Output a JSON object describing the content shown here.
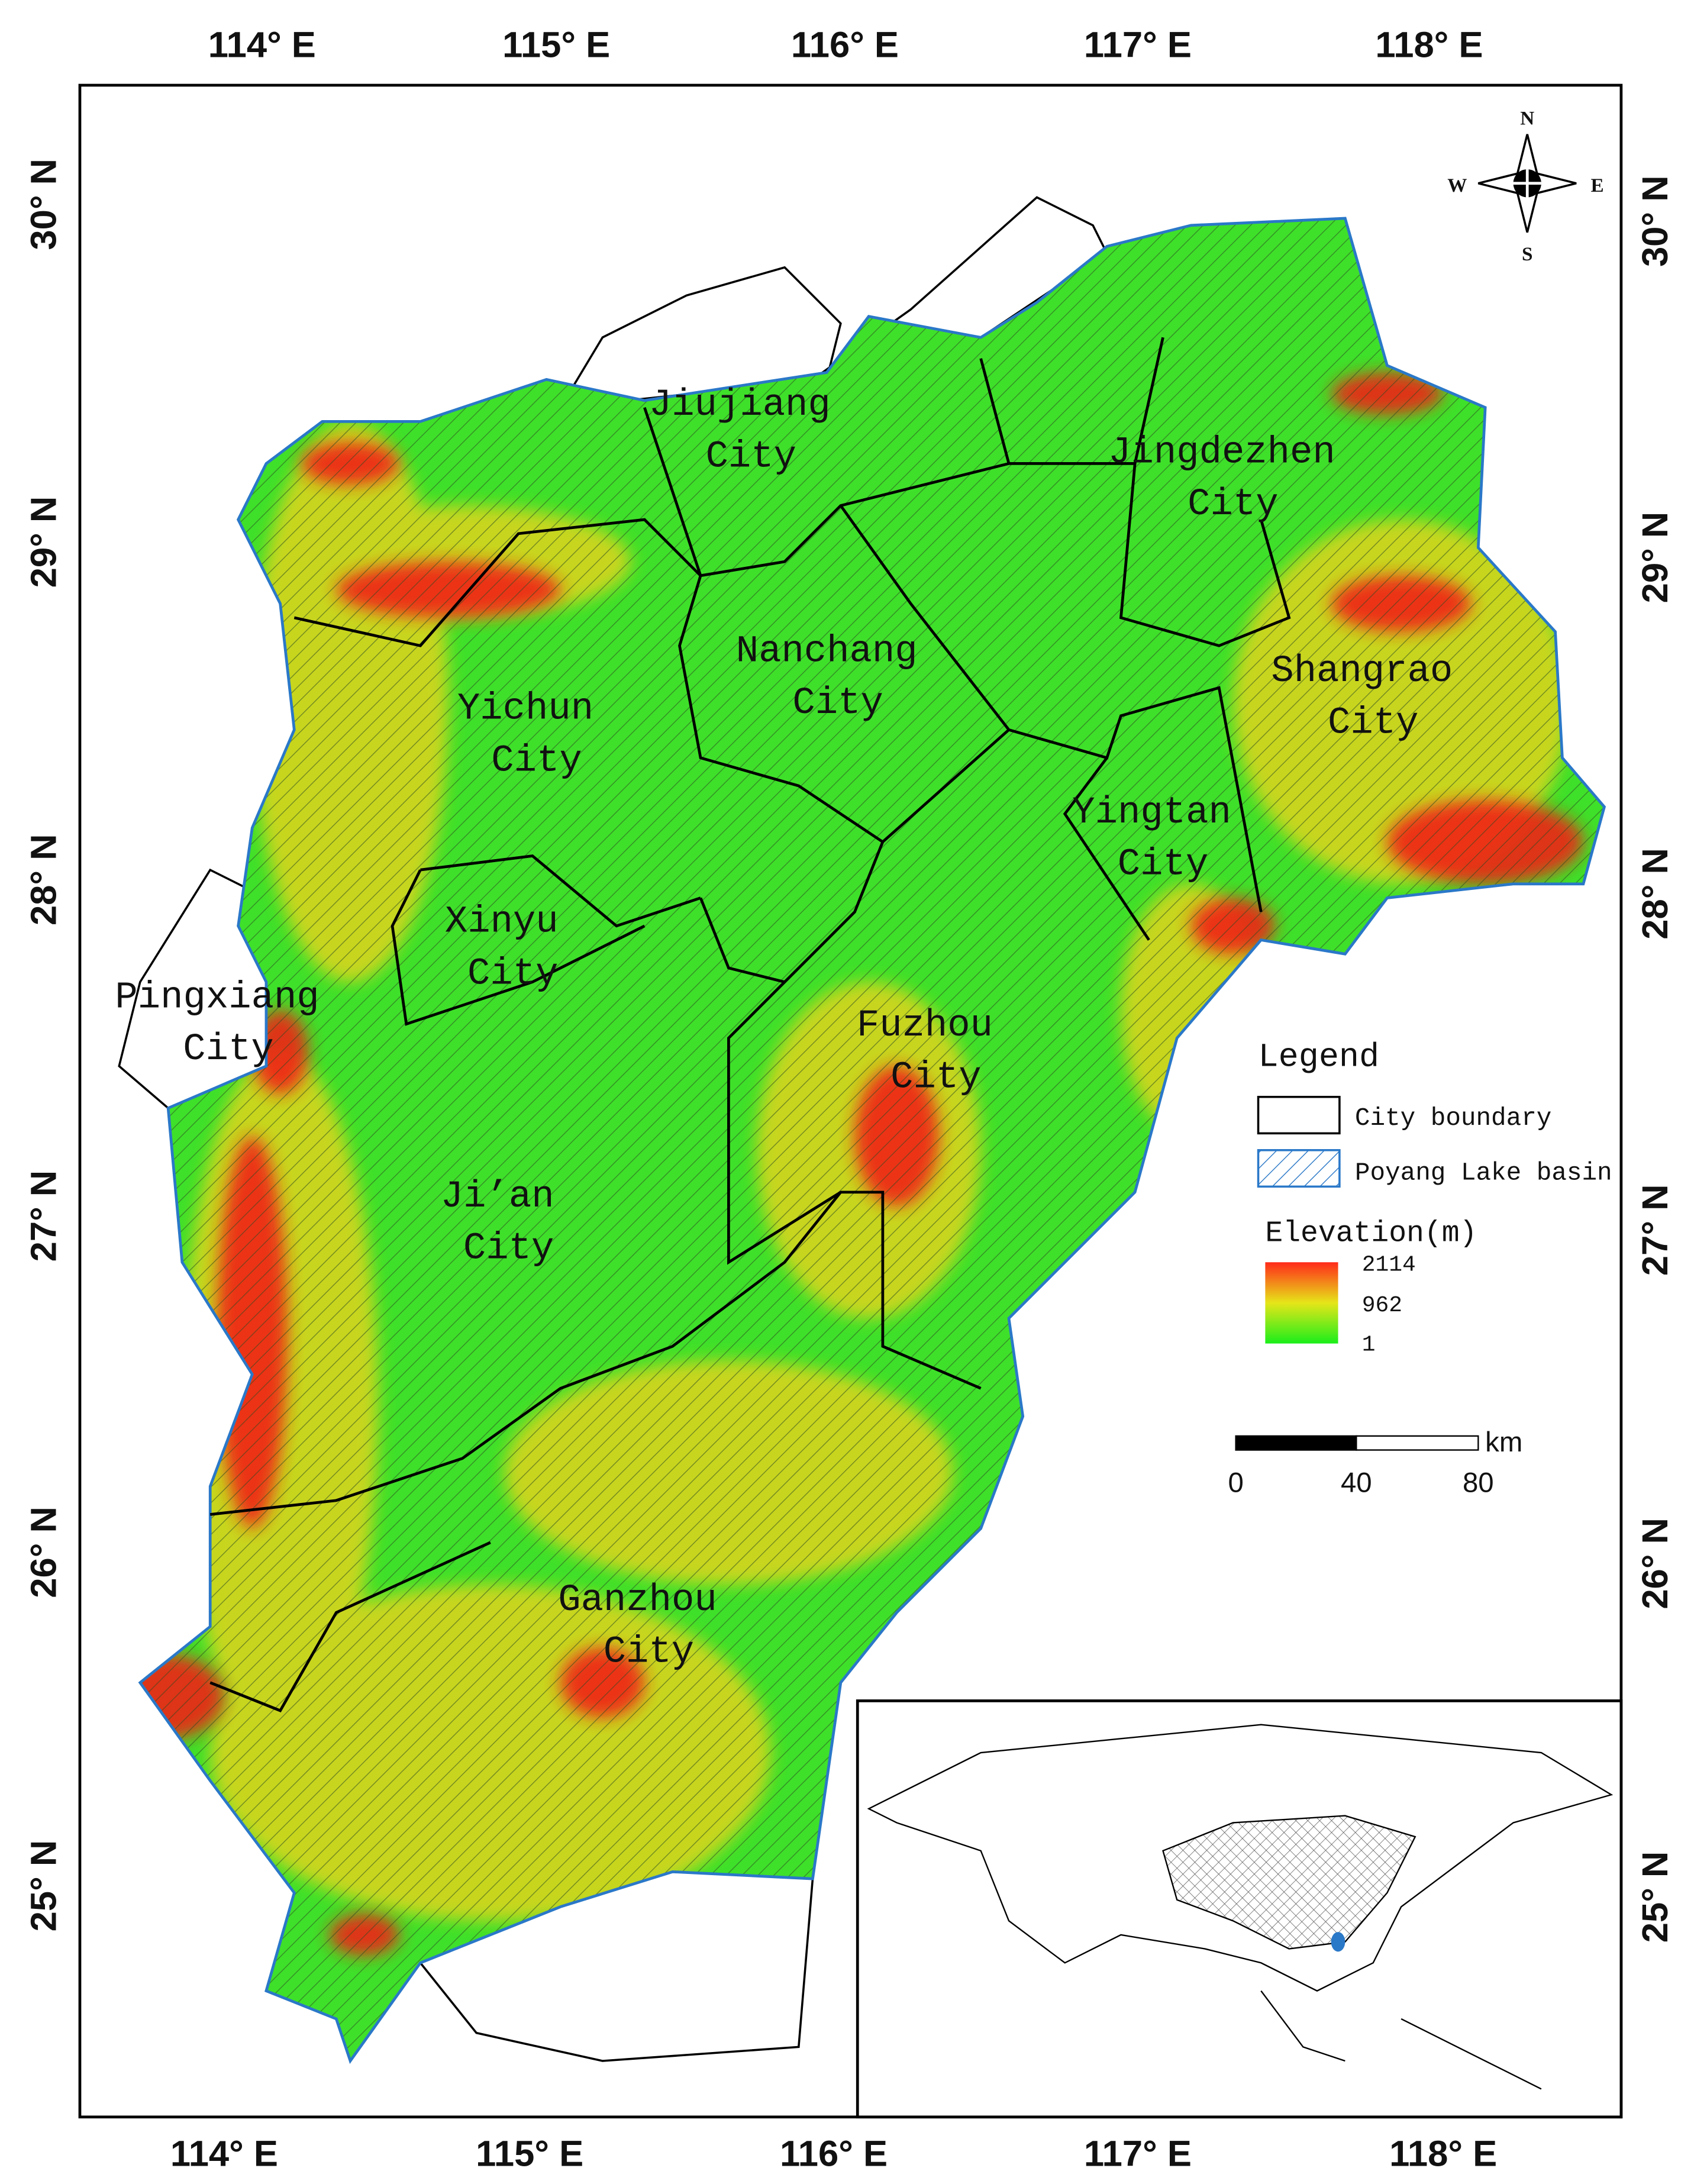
{
  "map": {
    "lon_ticks_top": [
      "114° E",
      "115° E",
      "116° E",
      "117° E",
      "118° E"
    ],
    "lon_ticks_bottom": [
      "114° E",
      "115° E",
      "116° E",
      "117° E",
      "118° E"
    ],
    "lat_ticks_left": [
      "30° N",
      "29° N",
      "28° N",
      "27° N",
      "26° N",
      "25° N"
    ],
    "lat_ticks_right": [
      "30° N",
      "29° N",
      "28° N",
      "27° N",
      "26° N",
      "25° N"
    ]
  },
  "cities": [
    {
      "name": "Jiujiang",
      "suffix": "City"
    },
    {
      "name": "Jingdezhen",
      "suffix": "City"
    },
    {
      "name": "Nanchang",
      "suffix": "City"
    },
    {
      "name": "Shangrao",
      "suffix": "City"
    },
    {
      "name": "Yichun",
      "suffix": "City"
    },
    {
      "name": "Yingtan",
      "suffix": "City"
    },
    {
      "name": "Xinyu",
      "suffix": "City"
    },
    {
      "name": "Pingxiang",
      "suffix": "City"
    },
    {
      "name": "Fuzhou",
      "suffix": "City"
    },
    {
      "name": "Ji’an",
      "suffix": "City"
    },
    {
      "name": "Ganzhou",
      "suffix": "City"
    }
  ],
  "legend": {
    "title": "Legend",
    "items": [
      "City boundary",
      "Poyang Lake basin"
    ],
    "elevation_title": "Elevation(m)",
    "elevation_labels": [
      2114,
      962,
      1
    ]
  },
  "scale_bar": {
    "unit": "km",
    "labels": [
      0,
      40,
      80
    ]
  },
  "compass": {
    "n": "N",
    "s": "S",
    "e": "E",
    "w": "W"
  }
}
